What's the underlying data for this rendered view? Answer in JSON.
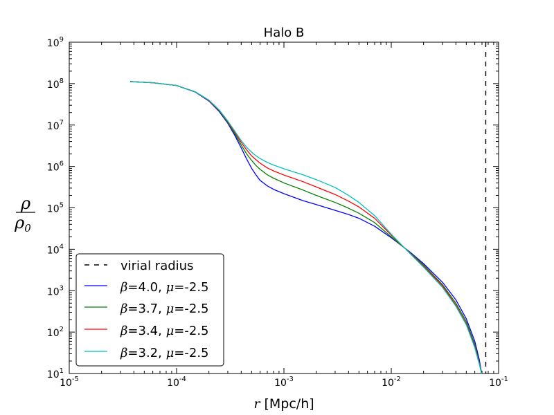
{
  "chart_data": {
    "type": "line",
    "title": "Halo B",
    "xscale": "log",
    "yscale": "log",
    "xlim": [
      1e-05,
      0.1
    ],
    "ylim": [
      10,
      1000000000.0
    ],
    "xlabel_math": "r",
    "xlabel_text": " [Mpc/h]",
    "ylabel_num": "ρ",
    "ylabel_den": "ρ",
    "ylabel_den_sub": "0",
    "x_ticks": [
      {
        "value": 1e-05,
        "base": "10",
        "exp": "-5"
      },
      {
        "value": 0.0001,
        "base": "10",
        "exp": "-4"
      },
      {
        "value": 0.001,
        "base": "10",
        "exp": "-3"
      },
      {
        "value": 0.01,
        "base": "10",
        "exp": "-2"
      },
      {
        "value": 0.1,
        "base": "10",
        "exp": "-1"
      }
    ],
    "y_ticks": [
      {
        "value": 10.0,
        "base": "10",
        "exp": "1"
      },
      {
        "value": 100.0,
        "base": "10",
        "exp": "2"
      },
      {
        "value": 1000.0,
        "base": "10",
        "exp": "3"
      },
      {
        "value": 10000.0,
        "base": "10",
        "exp": "4"
      },
      {
        "value": 100000.0,
        "base": "10",
        "exp": "5"
      },
      {
        "value": 1000000.0,
        "base": "10",
        "exp": "6"
      },
      {
        "value": 10000000.0,
        "base": "10",
        "exp": "7"
      },
      {
        "value": 100000000.0,
        "base": "10",
        "exp": "8"
      },
      {
        "value": 1000000000.0,
        "base": "10",
        "exp": "9"
      }
    ],
    "vline": {
      "name": "virial radius",
      "x": 0.0759,
      "color": "#000000",
      "style": "dashed"
    },
    "legend_position": "lower-left",
    "series": [
      {
        "name": "β=4.0, μ=-2.5",
        "beta": "4.0",
        "mu": "-2.5",
        "color": "#0000ff",
        "points": [
          [
            3.7e-05,
            112000000.0
          ],
          [
            6e-05,
            105000000.0
          ],
          [
            0.0001,
            90000000.0
          ],
          [
            0.00015,
            62000000.0
          ],
          [
            0.0002,
            38000000.0
          ],
          [
            0.00025,
            21000000.0
          ],
          [
            0.0003,
            11000000.0
          ],
          [
            0.00035,
            5500000.0
          ],
          [
            0.0004,
            2800000.0
          ],
          [
            0.00045,
            1500000.0
          ],
          [
            0.0005,
            900000.0
          ],
          [
            0.00055,
            620000.0
          ],
          [
            0.0006,
            460000.0
          ],
          [
            0.0007,
            340000.0
          ],
          [
            0.0008,
            280000.0
          ],
          [
            0.001,
            220000.0
          ],
          [
            0.0015,
            150000.0
          ],
          [
            0.002,
            120000.0
          ],
          [
            0.003,
            87000.0
          ],
          [
            0.004,
            69000.0
          ],
          [
            0.005,
            56000.0
          ],
          [
            0.007,
            36000.0
          ],
          [
            0.01,
            19000.0
          ],
          [
            0.015,
            8500.0
          ],
          [
            0.02,
            4500.0
          ],
          [
            0.03,
            1600.0
          ],
          [
            0.04,
            600.0
          ],
          [
            0.05,
            210.0
          ],
          [
            0.06,
            60.0
          ],
          [
            0.066,
            22.0
          ],
          [
            0.07,
            9
          ]
        ]
      },
      {
        "name": "β=3.7, μ=-2.5",
        "beta": "3.7",
        "mu": "-2.5",
        "color": "#008000",
        "points": [
          [
            3.7e-05,
            112000000.0
          ],
          [
            6e-05,
            105000000.0
          ],
          [
            0.0001,
            90000000.0
          ],
          [
            0.00015,
            63000000.0
          ],
          [
            0.0002,
            39000000.0
          ],
          [
            0.00025,
            22000000.0
          ],
          [
            0.0003,
            11500000.0
          ],
          [
            0.00035,
            6000000.0
          ],
          [
            0.0004,
            3300000.0
          ],
          [
            0.00045,
            2000000.0
          ],
          [
            0.0005,
            1400000.0
          ],
          [
            0.00055,
            1050000.0
          ],
          [
            0.0006,
            850000.0
          ],
          [
            0.0007,
            630000.0
          ],
          [
            0.0008,
            520000.0
          ],
          [
            0.001,
            400000.0
          ],
          [
            0.0015,
            270000.0
          ],
          [
            0.002,
            200000.0
          ],
          [
            0.003,
            135000.0
          ],
          [
            0.004,
            98000.0
          ],
          [
            0.005,
            74000.0
          ],
          [
            0.007,
            44000.0
          ],
          [
            0.01,
            20000.0
          ],
          [
            0.015,
            8200.0
          ],
          [
            0.02,
            4200.0
          ],
          [
            0.03,
            1400.0
          ],
          [
            0.04,
            500.0
          ],
          [
            0.05,
            180.0
          ],
          [
            0.06,
            50.0
          ],
          [
            0.066,
            19.0
          ],
          [
            0.07,
            9
          ]
        ]
      },
      {
        "name": "β=3.4, μ=-2.5",
        "beta": "3.4",
        "mu": "-2.5",
        "color": "#ff0000",
        "points": [
          [
            3.7e-05,
            112000000.0
          ],
          [
            6e-05,
            105000000.0
          ],
          [
            0.0001,
            90000000.0
          ],
          [
            0.00015,
            63000000.0
          ],
          [
            0.0002,
            39000000.0
          ],
          [
            0.00025,
            22500000.0
          ],
          [
            0.0003,
            12000000.0
          ],
          [
            0.00035,
            6500000.0
          ],
          [
            0.0004,
            3800000.0
          ],
          [
            0.00045,
            2500000.0
          ],
          [
            0.0005,
            1800000.0
          ],
          [
            0.00055,
            1450000.0
          ],
          [
            0.0006,
            1200000.0
          ],
          [
            0.0007,
            920000.0
          ],
          [
            0.0008,
            780000.0
          ],
          [
            0.001,
            620000.0
          ],
          [
            0.0015,
            430000.0
          ],
          [
            0.002,
            320000.0
          ],
          [
            0.003,
            210000.0
          ],
          [
            0.004,
            145000.0
          ],
          [
            0.005,
            105000.0
          ],
          [
            0.007,
            56000.0
          ],
          [
            0.01,
            22000.0
          ],
          [
            0.015,
            8000.0
          ],
          [
            0.02,
            3900.0
          ],
          [
            0.03,
            1300.0
          ],
          [
            0.04,
            450.0
          ],
          [
            0.05,
            160.0
          ],
          [
            0.06,
            45.0
          ],
          [
            0.066,
            18.0
          ],
          [
            0.07,
            9
          ]
        ]
      },
      {
        "name": "β=3.2, μ=-2.5",
        "beta": "3.2",
        "mu": "-2.5",
        "color": "#00bfbf",
        "points": [
          [
            3.7e-05,
            112000000.0
          ],
          [
            6e-05,
            105000000.0
          ],
          [
            0.0001,
            90000000.0
          ],
          [
            0.00015,
            63000000.0
          ],
          [
            0.0002,
            40000000.0
          ],
          [
            0.00025,
            23000000.0
          ],
          [
            0.0003,
            12500000.0
          ],
          [
            0.00035,
            7000000.0
          ],
          [
            0.0004,
            4200000.0
          ],
          [
            0.00045,
            2900000.0
          ],
          [
            0.0005,
            2200000.0
          ],
          [
            0.00055,
            1800000.0
          ],
          [
            0.0006,
            1550000.0
          ],
          [
            0.0007,
            1250000.0
          ],
          [
            0.0008,
            1080000.0
          ],
          [
            0.001,
            880000.0
          ],
          [
            0.0015,
            630000.0
          ],
          [
            0.002,
            480000.0
          ],
          [
            0.003,
            310000.0
          ],
          [
            0.004,
            200000.0
          ],
          [
            0.005,
            135000.0
          ],
          [
            0.007,
            65000.0
          ],
          [
            0.01,
            23000.0
          ],
          [
            0.015,
            7800.0
          ],
          [
            0.02,
            3700.0
          ],
          [
            0.03,
            1200.0
          ],
          [
            0.04,
            420.0
          ],
          [
            0.05,
            150.0
          ],
          [
            0.06,
            42.0
          ],
          [
            0.066,
            17.0
          ],
          [
            0.07,
            9
          ]
        ]
      }
    ]
  }
}
